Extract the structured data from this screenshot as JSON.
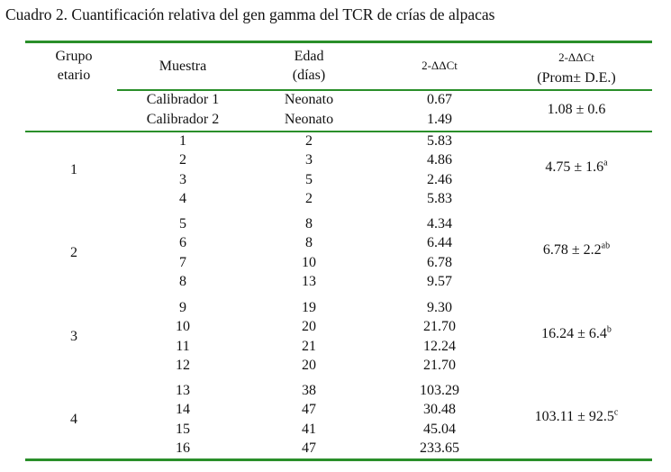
{
  "caption": "Cuadro 2. Cuantificación relativa del gen gamma del TCR de crías de alpacas",
  "headers": {
    "group_line1": "Grupo",
    "group_line2": "etario",
    "sample": "Muestra",
    "age_line1": "Edad",
    "age_line2": "(días)",
    "expr": "2-ΔΔCt",
    "mean_line1": "2-ΔΔCt",
    "mean_line2": "(Prom± D.E.)"
  },
  "calibrators": {
    "rows": [
      {
        "sample": "Calibrador 1",
        "age": "Neonato",
        "value": "0.67"
      },
      {
        "sample": "Calibrador 2",
        "age": "Neonato",
        "value": "1.49"
      }
    ],
    "mean": "1.08 ± 0.6"
  },
  "groups": [
    {
      "label": "1",
      "mean": "4.75 ± 1.6",
      "sup": "a",
      "rows": [
        {
          "sample": "1",
          "age": "2",
          "value": "5.83"
        },
        {
          "sample": "2",
          "age": "3",
          "value": "4.86"
        },
        {
          "sample": "3",
          "age": "5",
          "value": "2.46"
        },
        {
          "sample": "4",
          "age": "2",
          "value": "5.83"
        }
      ]
    },
    {
      "label": "2",
      "mean": "6.78 ± 2.2",
      "sup": "ab",
      "rows": [
        {
          "sample": "5",
          "age": "8",
          "value": "4.34"
        },
        {
          "sample": "6",
          "age": "8",
          "value": "6.44"
        },
        {
          "sample": "7",
          "age": "10",
          "value": "6.78"
        },
        {
          "sample": "8",
          "age": "13",
          "value": "9.57"
        }
      ]
    },
    {
      "label": "3",
      "mean": "16.24 ± 6.4",
      "sup": "b",
      "rows": [
        {
          "sample": "9",
          "age": "19",
          "value": "9.30"
        },
        {
          "sample": "10",
          "age": "20",
          "value": "21.70"
        },
        {
          "sample": "11",
          "age": "21",
          "value": "12.24"
        },
        {
          "sample": "12",
          "age": "20",
          "value": "21.70"
        }
      ]
    },
    {
      "label": "4",
      "mean": "103.11 ± 92.5",
      "sup": "c",
      "rows": [
        {
          "sample": "13",
          "age": "38",
          "value": "103.29"
        },
        {
          "sample": "14",
          "age": "47",
          "value": "30.48"
        },
        {
          "sample": "15",
          "age": "41",
          "value": "45.04"
        },
        {
          "sample": "16",
          "age": "47",
          "value": "233.65"
        }
      ]
    }
  ],
  "colors": {
    "rule": "#2a8f2a",
    "text": "#111111"
  }
}
